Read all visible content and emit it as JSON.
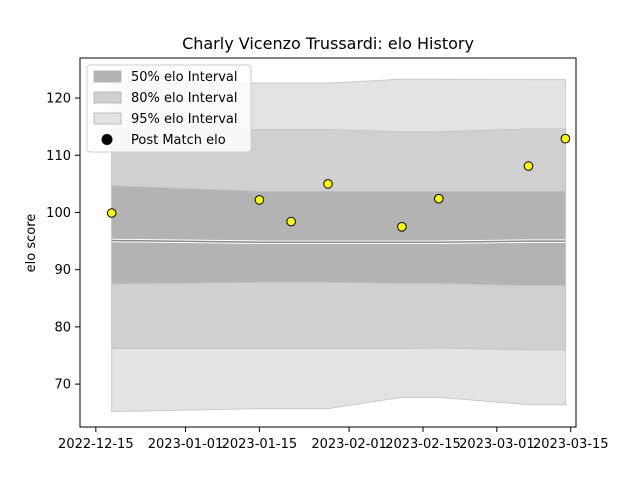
{
  "chart_data": {
    "type": "line",
    "title": "Charly Vicenzo Trussardi: elo History",
    "xlabel": "",
    "ylabel": "elo score",
    "xlim": [
      "2022-12-12",
      "2023-03-16"
    ],
    "ylim": [
      62.5,
      127
    ],
    "x_ticks": [
      "2022-12-15",
      "2023-01-01",
      "2023-01-15",
      "2023-02-01",
      "2023-02-15",
      "2023-03-01",
      "2023-03-15"
    ],
    "y_ticks": [
      70,
      80,
      90,
      100,
      110,
      120
    ],
    "grid": false,
    "legend_position": "top-left",
    "dates": [
      "2022-12-18",
      "2023-01-15",
      "2023-01-21",
      "2023-01-28",
      "2023-02-11",
      "2023-02-18",
      "2023-03-07",
      "2023-03-14"
    ],
    "mean": [
      95.1,
      94.8,
      94.8,
      94.8,
      94.8,
      94.8,
      95.0,
      95.0
    ],
    "series": [
      {
        "name": "50% elo Interval",
        "color": "#b3b3b3",
        "lower": [
          87.5,
          87.8,
          87.8,
          87.8,
          87.6,
          87.6,
          87.2,
          87.2
        ],
        "upper": [
          104.7,
          103.7,
          103.7,
          103.7,
          103.7,
          103.7,
          103.7,
          103.7
        ]
      },
      {
        "name": "80% elo Interval",
        "color": "#d0d0d0",
        "lower": [
          76.2,
          76.2,
          76.2,
          76.2,
          76.2,
          76.3,
          76.0,
          76.0
        ],
        "upper": [
          114.5,
          114.5,
          114.5,
          114.5,
          114.1,
          114.1,
          114.6,
          114.6
        ]
      },
      {
        "name": "95% elo Interval",
        "color": "#e3e3e3",
        "lower": [
          65.2,
          65.7,
          65.7,
          65.7,
          67.7,
          67.7,
          66.4,
          66.4
        ],
        "upper": [
          122.6,
          122.6,
          122.6,
          122.6,
          123.3,
          123.3,
          123.2,
          123.2
        ]
      },
      {
        "name": "Post Match elo",
        "color": "#ffff00",
        "x": [
          "2022-12-18",
          "2023-01-15",
          "2023-01-21",
          "2023-01-28",
          "2023-02-11",
          "2023-02-18",
          "2023-03-07",
          "2023-03-14"
        ],
        "values": [
          99.9,
          102.2,
          98.4,
          105.0,
          97.5,
          102.4,
          108.1,
          112.9
        ]
      }
    ]
  }
}
